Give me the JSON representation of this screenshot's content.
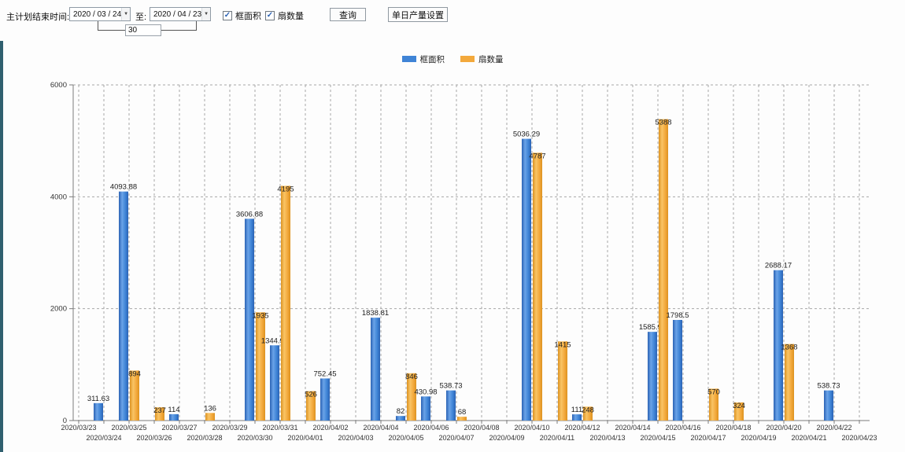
{
  "colors": {
    "bar_blue": "#3f84d6",
    "bar_blue_light": "#6aa3e8",
    "bar_blue_dark": "#2a62b4",
    "bar_orange": "#f3a93c",
    "bar_orange_light": "#f9c465",
    "bar_orange_dark": "#dd9220",
    "axis": "#7a7a7a",
    "grid": "#a8a8a8",
    "tick_text": "#333333",
    "bar_label_text": "#222222",
    "side_strip": "#30606f"
  },
  "toolbar": {
    "label_range": "主计划结束时间:",
    "date_from": "2020 / 03 / 24",
    "label_to": "至:",
    "date_to": "2020 / 04 / 23",
    "dropdown_glyph": "▼",
    "days_between": "30",
    "checkbox_area_label": "框面积",
    "checkbox_fans_label": "扇数量",
    "checkbox_glyph": "✓",
    "query_button": "查询",
    "daily_output_button": "单日产量设置"
  },
  "legend": [
    {
      "label": "框面积",
      "color": "#3f84d6"
    },
    {
      "label": "扇数量",
      "color": "#f3a93c"
    }
  ],
  "chart_data": {
    "type": "bar",
    "title": "",
    "xlabel": "",
    "ylabel": "",
    "ylim": [
      0,
      6000
    ],
    "yticks": [
      0,
      2000,
      4000,
      6000
    ],
    "grid": true,
    "legend_position": "top-center",
    "categories": [
      "2020/03/23",
      "2020/03/24",
      "2020/03/25",
      "2020/03/26",
      "2020/03/27",
      "2020/03/28",
      "2020/03/29",
      "2020/03/30",
      "2020/03/31",
      "2020/04/01",
      "2020/04/02",
      "2020/04/03",
      "2020/04/04",
      "2020/04/05",
      "2020/04/06",
      "2020/04/07",
      "2020/04/08",
      "2020/04/09",
      "2020/04/10",
      "2020/04/11",
      "2020/04/12",
      "2020/04/13",
      "2020/04/14",
      "2020/04/15",
      "2020/04/16",
      "2020/04/17",
      "2020/04/18",
      "2020/04/19",
      "2020/04/20",
      "2020/04/21",
      "2020/04/22",
      "2020/04/23"
    ],
    "series": [
      {
        "name": "框面积",
        "color": "#3f84d6",
        "values": [
          null,
          311.63,
          4093.88,
          null,
          114,
          null,
          null,
          3606.88,
          1344.95,
          null,
          752.45,
          null,
          1838.81,
          82,
          430.98,
          538.73,
          null,
          null,
          5036.29,
          null,
          111,
          null,
          null,
          1585.96,
          1798.5,
          null,
          null,
          null,
          2688.17,
          null,
          538.73,
          null
        ]
      },
      {
        "name": "扇数量",
        "color": "#f3a93c",
        "values": [
          null,
          null,
          894,
          237,
          null,
          136,
          null,
          1935,
          4195,
          526,
          null,
          null,
          null,
          846,
          null,
          68,
          null,
          null,
          4787,
          1415,
          248,
          null,
          null,
          5388,
          null,
          570,
          324,
          null,
          1368,
          null,
          null,
          null
        ]
      }
    ]
  }
}
